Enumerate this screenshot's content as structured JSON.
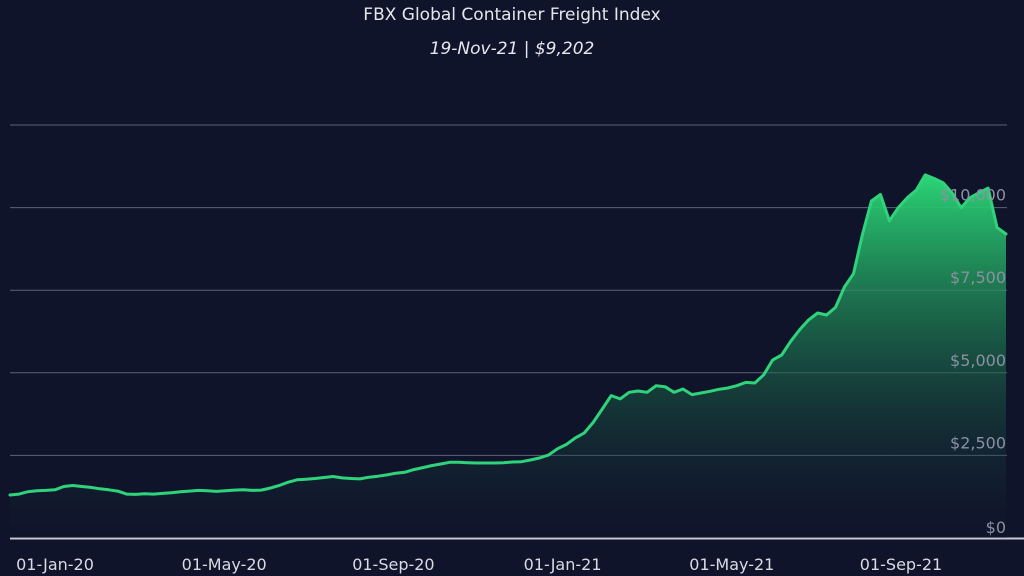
{
  "chart_data": {
    "type": "area",
    "title": "FBX Global Container Freight Index",
    "subtitle": "19-Nov-21 | $9,202",
    "xlabel": "",
    "ylabel": "",
    "ylim": [
      0,
      12500
    ],
    "y_ticks": [
      {
        "value": 0,
        "label": "$0"
      },
      {
        "value": 2500,
        "label": "$2,500"
      },
      {
        "value": 5000,
        "label": "$5,000"
      },
      {
        "value": 7500,
        "label": "$7,500"
      },
      {
        "value": 10000,
        "label": "$10,000"
      }
    ],
    "x_ticks": [
      "01-Jan-20",
      "01-May-20",
      "01-Sep-20",
      "01-Jan-21",
      "01-May-21",
      "01-Sep-21"
    ],
    "grid": true,
    "colors": {
      "background": "#10142b",
      "line": "#2fd47a",
      "fill_top": "#2bd576",
      "grid": "#5d6278",
      "axis": "#c7cad6"
    },
    "series": [
      {
        "name": "FBX Global Container Freight Index",
        "values": [
          1300,
          1330,
          1400,
          1430,
          1440,
          1460,
          1560,
          1590,
          1560,
          1530,
          1490,
          1460,
          1420,
          1330,
          1320,
          1340,
          1330,
          1350,
          1370,
          1400,
          1420,
          1440,
          1430,
          1410,
          1430,
          1450,
          1460,
          1440,
          1450,
          1510,
          1590,
          1690,
          1760,
          1780,
          1800,
          1830,
          1860,
          1820,
          1800,
          1790,
          1840,
          1870,
          1910,
          1960,
          1990,
          2070,
          2130,
          2190,
          2240,
          2290,
          2290,
          2280,
          2270,
          2270,
          2270,
          2280,
          2300,
          2310,
          2360,
          2420,
          2510,
          2700,
          2830,
          3030,
          3180,
          3500,
          3900,
          4310,
          4210,
          4410,
          4450,
          4410,
          4610,
          4580,
          4410,
          4510,
          4340,
          4390,
          4440,
          4500,
          4540,
          4610,
          4710,
          4690,
          4940,
          5390,
          5540,
          5950,
          6300,
          6600,
          6810,
          6750,
          6980,
          7600,
          8000,
          9180,
          10200,
          10400,
          9600,
          10000,
          10300,
          10530,
          10990,
          10880,
          10750,
          10440,
          10000,
          10300,
          10450,
          10590,
          9400,
          9202
        ]
      }
    ]
  }
}
